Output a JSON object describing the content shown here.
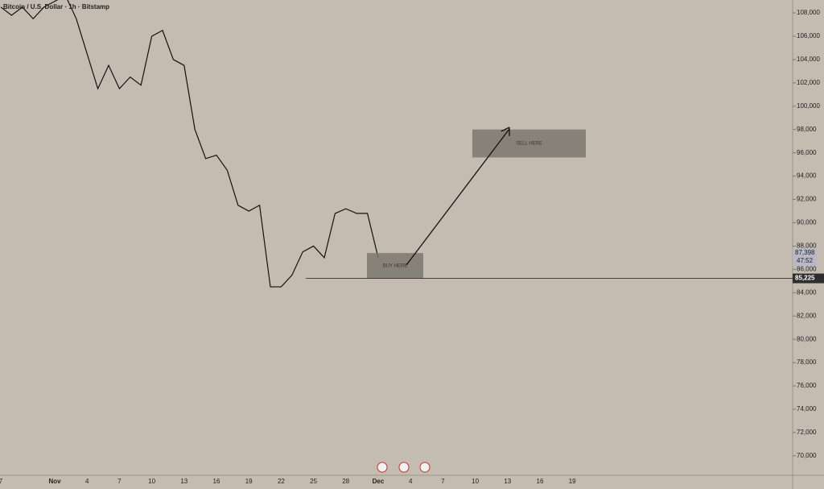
{
  "chart_data": {
    "type": "line",
    "title": "Bitcoin / U.S. Dollar · 1h · Bitstamp",
    "categories": [
      "7",
      null,
      null,
      null,
      null,
      "Nov",
      null,
      null,
      "4",
      null,
      null,
      "7",
      null,
      null,
      "10",
      null,
      null,
      "13",
      null,
      null,
      "16",
      null,
      null,
      "19",
      null,
      null,
      "22",
      null,
      null,
      "25",
      null,
      null,
      "28",
      null,
      null,
      "Dec",
      null,
      null,
      "4",
      null,
      null,
      "7",
      null,
      null,
      "10",
      null,
      null,
      "13",
      null,
      null,
      "16",
      null,
      null,
      "19"
    ],
    "series": [
      {
        "name": "BTCUSD",
        "color": "#111111",
        "values": [
          108500,
          107800,
          108500,
          107500,
          108500,
          109000,
          109500,
          107500,
          104500,
          101500,
          103500,
          101500,
          102500,
          101800,
          106000,
          106500,
          104000,
          103500,
          98000,
          95500,
          95800,
          94500,
          91500,
          91000,
          91500,
          84500,
          84500,
          85500,
          87500,
          88000,
          87000,
          90800,
          91200,
          90800,
          90800,
          87000,
          null,
          null,
          null,
          null,
          null,
          null,
          null,
          null,
          null,
          null,
          null,
          null,
          null,
          null,
          null,
          null,
          null,
          null
        ]
      }
    ],
    "ylim": [
      68330,
      109110
    ],
    "yticks": [
      {
        "value": 70000,
        "label": "70,000"
      },
      {
        "value": 72000,
        "label": "72,000"
      },
      {
        "value": 74000,
        "label": "74,000"
      },
      {
        "value": 76000,
        "label": "76,000"
      },
      {
        "value": 78000,
        "label": "78,000"
      },
      {
        "value": 80000,
        "label": "80,000"
      },
      {
        "value": 82000,
        "label": "82,000"
      },
      {
        "value": 84000,
        "label": "84,000"
      },
      {
        "value": 86000,
        "label": "86,000"
      },
      {
        "value": 88000,
        "label": "88,000"
      },
      {
        "value": 90000,
        "label": "90,000"
      },
      {
        "value": 92000,
        "label": "92,000"
      },
      {
        "value": 94000,
        "label": "94,000"
      },
      {
        "value": 96000,
        "label": "96,000"
      },
      {
        "value": 98000,
        "label": "98,000"
      },
      {
        "value": 100000,
        "label": "100,000"
      },
      {
        "value": 102000,
        "label": "102,000"
      },
      {
        "value": 104000,
        "label": "104,000"
      },
      {
        "value": 106000,
        "label": "106,000"
      },
      {
        "value": 108000,
        "label": "108,000"
      }
    ],
    "hline": {
      "value": 85225,
      "label": "85,225"
    },
    "last_price": {
      "value": 87398,
      "label": "87,398",
      "countdown": "47:52"
    },
    "zones": [
      {
        "label": "BUY HERE",
        "top": 87400,
        "bottom": 85225,
        "color": "#7d786f"
      },
      {
        "label": "SELL HERE",
        "top": 98000,
        "bottom": 95600,
        "color": "#7d786f"
      }
    ]
  }
}
